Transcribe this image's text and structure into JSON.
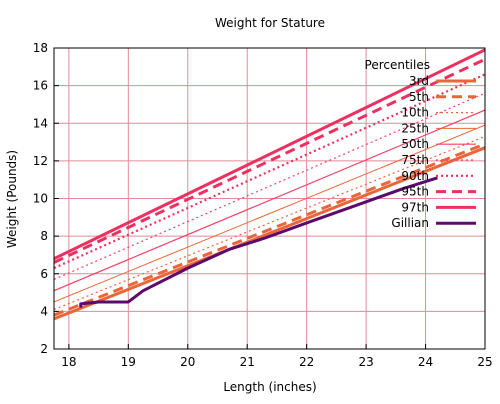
{
  "chart_data": {
    "type": "line",
    "title": "Weight for Stature",
    "xlabel": "Length (inches)",
    "ylabel": "Weight (Pounds)",
    "xlim": [
      17.75,
      25
    ],
    "ylim": [
      2,
      18
    ],
    "xticks": [
      18,
      19,
      20,
      21,
      22,
      23,
      24,
      25
    ],
    "yticks": [
      2,
      4,
      6,
      8,
      10,
      12,
      14,
      16,
      18
    ],
    "grid": true,
    "legend_title": "Percentiles",
    "legend_position": "top-right",
    "series": [
      {
        "name": "3rd",
        "color": "#e8663a",
        "style": "solid",
        "width": 3,
        "x": [
          17.75,
          25
        ],
        "y": [
          3.6,
          12.7
        ]
      },
      {
        "name": "5th",
        "color": "#e8663a",
        "style": "dashed",
        "width": 3,
        "x": [
          17.75,
          25
        ],
        "y": [
          3.8,
          12.9
        ]
      },
      {
        "name": "10th",
        "color": "#e8663a",
        "style": "dotted",
        "width": 1.2,
        "x": [
          17.75,
          25
        ],
        "y": [
          4.1,
          13.3
        ]
      },
      {
        "name": "25th",
        "color": "#e8663a",
        "style": "solid",
        "width": 1,
        "x": [
          17.75,
          25
        ],
        "y": [
          4.5,
          13.9
        ]
      },
      {
        "name": "50th",
        "color": "#f0436a",
        "style": "solid",
        "width": 1.2,
        "x": [
          17.75,
          25
        ],
        "y": [
          5.1,
          14.7
        ]
      },
      {
        "name": "75th",
        "color": "#f0436a",
        "style": "dotted",
        "width": 1.2,
        "x": [
          17.75,
          25
        ],
        "y": [
          5.7,
          15.6
        ]
      },
      {
        "name": "90th",
        "color": "#ee3060",
        "style": "dotted",
        "width": 2.2,
        "x": [
          17.75,
          25
        ],
        "y": [
          6.3,
          16.6
        ]
      },
      {
        "name": "95th",
        "color": "#ee3060",
        "style": "dashed",
        "width": 3,
        "x": [
          17.75,
          25
        ],
        "y": [
          6.6,
          17.4
        ]
      },
      {
        "name": "97th",
        "color": "#ee3060",
        "style": "solid",
        "width": 3,
        "x": [
          17.75,
          25
        ],
        "y": [
          6.8,
          17.9
        ]
      },
      {
        "name": "Gillian",
        "color": "#5c0a6b",
        "style": "solid",
        "width": 3,
        "x": [
          18.2,
          18.2,
          18.5,
          18.8,
          19.0,
          19.25,
          20.0,
          20.7,
          21.3,
          22.0,
          22.8,
          23.6,
          24.2
        ],
        "y": [
          4.2,
          4.4,
          4.5,
          4.5,
          4.5,
          5.1,
          6.3,
          7.3,
          7.9,
          8.7,
          9.6,
          10.5,
          11.1
        ]
      }
    ]
  }
}
